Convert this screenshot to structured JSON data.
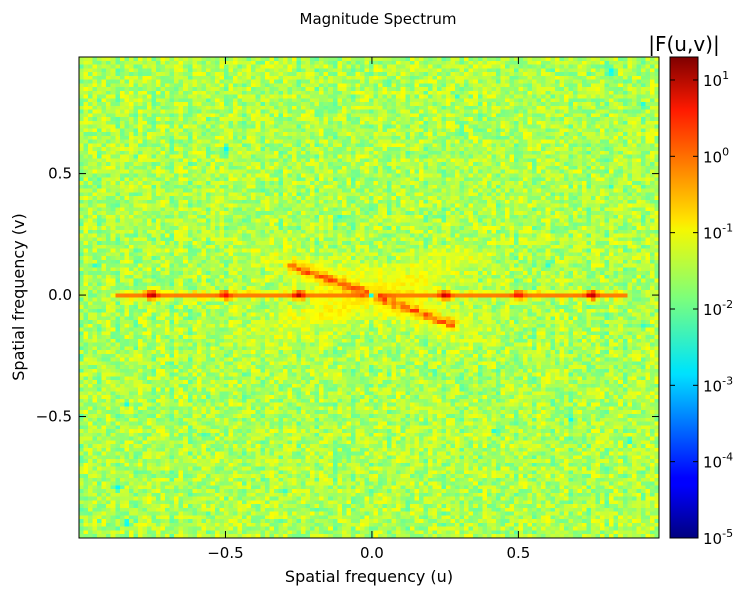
{
  "chart_data": {
    "type": "heatmap",
    "title": "Magnitude Spectrum",
    "xlabel": "Spatial frequency (u)",
    "ylabel": "Spatial frequency (v)",
    "xlim": [
      -1.0,
      0.98
    ],
    "ylim": [
      -1.0,
      0.98
    ],
    "x_ticks": [
      -0.5,
      0.0,
      0.5
    ],
    "x_tick_labels": [
      "−0.5",
      "0.0",
      "0.5"
    ],
    "y_ticks": [
      -0.5,
      0.0,
      0.5
    ],
    "y_tick_labels": [
      "−0.5",
      "0.0",
      "0.5"
    ],
    "colormap": "jet",
    "color_scale": "log",
    "colorbar": {
      "label": "|F(u,v)|",
      "range": [
        1e-05,
        20
      ],
      "ticks": [
        1e-05,
        0.0001,
        0.001,
        0.01,
        0.1,
        1,
        10
      ],
      "tick_labels": [
        {
          "base": "10",
          "exp": "-5"
        },
        {
          "base": "10",
          "exp": "-4"
        },
        {
          "base": "10",
          "exp": "-3"
        },
        {
          "base": "10",
          "exp": "-2"
        },
        {
          "base": "10",
          "exp": "-1"
        },
        {
          "base": "10",
          "exp": "0"
        },
        {
          "base": "10",
          "exp": "1"
        }
      ]
    },
    "background_level": 0.03,
    "features": [
      {
        "kind": "horizontal_line",
        "v": 0.0,
        "u_range": [
          -0.87,
          0.87
        ],
        "value": 0.6
      },
      {
        "kind": "peak",
        "u": -0.75,
        "v": 0.0,
        "value": 10
      },
      {
        "kind": "peak",
        "u": -0.5,
        "v": 0.0,
        "value": 3
      },
      {
        "kind": "peak",
        "u": -0.25,
        "v": 0.0,
        "value": 8
      },
      {
        "kind": "peak",
        "u": 0.25,
        "v": 0.0,
        "value": 8
      },
      {
        "kind": "peak",
        "u": 0.5,
        "v": 0.0,
        "value": 3
      },
      {
        "kind": "peak",
        "u": 0.75,
        "v": 0.0,
        "value": 10
      },
      {
        "kind": "center_dip",
        "u": 0.0,
        "v": 0.0,
        "value": 0.002
      },
      {
        "kind": "diagonal_ridge",
        "from": [
          -0.27,
          0.12
        ],
        "to": [
          0.27,
          -0.12
        ],
        "value": 2
      },
      {
        "kind": "butterfly_lobes",
        "slopes": [
          0.45,
          -0.45
        ],
        "extent": 0.35,
        "value": 0.15
      }
    ],
    "outliers": [
      {
        "u": -0.5,
        "v": 0.6,
        "value": 0.002
      },
      {
        "u": -0.69,
        "v": 0.53,
        "value": 0.003
      },
      {
        "u": -0.11,
        "v": 0.32,
        "value": 0.004
      },
      {
        "u": -0.94,
        "v": 0.12,
        "value": 0.003
      },
      {
        "u": -0.8,
        "v": 0.14,
        "value": 0.004
      },
      {
        "u": -0.84,
        "v": -0.45,
        "value": 0.003
      },
      {
        "u": -0.87,
        "v": -0.79,
        "value": 0.002
      },
      {
        "u": -0.84,
        "v": -0.94,
        "value": 0.001
      },
      {
        "u": -0.3,
        "v": -0.81,
        "value": 0.003
      },
      {
        "u": 0.42,
        "v": -0.56,
        "value": 0.003
      },
      {
        "u": 0.68,
        "v": -0.51,
        "value": 0.002
      },
      {
        "u": 0.88,
        "v": -0.6,
        "value": 0.003
      },
      {
        "u": 0.93,
        "v": -0.12,
        "value": 0.003
      },
      {
        "u": 0.93,
        "v": 0.78,
        "value": 0.002
      },
      {
        "u": 0.82,
        "v": 0.92,
        "value": 0.001
      },
      {
        "u": 0.29,
        "v": 0.82,
        "value": 0.004
      },
      {
        "u": 0.22,
        "v": -0.32,
        "value": 0.004
      },
      {
        "u": 0.82,
        "v": 0.45,
        "value": 0.004
      },
      {
        "u": -0.58,
        "v": -0.58,
        "value": 0.003
      },
      {
        "u": 0.6,
        "v": 0.12,
        "value": 0.004
      }
    ]
  }
}
